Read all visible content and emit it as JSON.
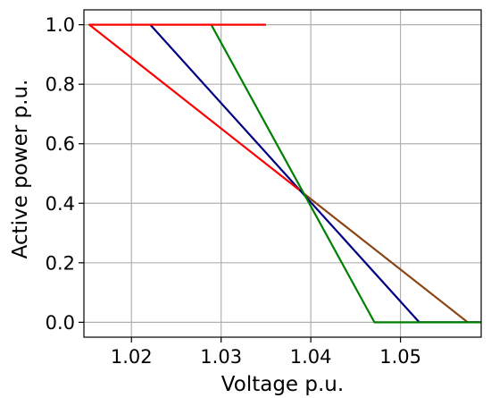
{
  "chart_data": {
    "type": "line",
    "title": "",
    "xlabel": "Voltage p.u.",
    "ylabel": "Active power p.u.",
    "xlim": [
      1.0147,
      1.059
    ],
    "ylim": [
      -0.05,
      1.05
    ],
    "xticks": [
      1.02,
      1.03,
      1.04,
      1.05
    ],
    "xtick_labels": [
      "1.02",
      "1.03",
      "1.04",
      "1.05"
    ],
    "yticks": [
      0.0,
      0.2,
      0.4,
      0.6,
      0.8,
      1.0
    ],
    "ytick_labels": [
      "0.0",
      "0.2",
      "0.4",
      "0.6",
      "0.8",
      "1.0"
    ],
    "grid": true,
    "legend": "none",
    "series": [
      {
        "color": "#8b4513",
        "x": [
          1.0387,
          1.0575,
          1.059
        ],
        "y": [
          0.445,
          0.0,
          0.0
        ]
      },
      {
        "color": "#000080",
        "x": [
          1.0221,
          1.0521,
          1.059
        ],
        "y": [
          1.0,
          0.0,
          0.0
        ]
      },
      {
        "color": "#008000",
        "x": [
          1.0289,
          1.0471,
          1.059
        ],
        "y": [
          1.0,
          0.0,
          0.0
        ]
      },
      {
        "color": "#ff0000",
        "x": [
          1.035,
          1.0153,
          1.0387
        ],
        "y": [
          1.0,
          1.0,
          0.445
        ]
      }
    ],
    "colors": {
      "grid": "#b0b0b0",
      "axis": "#000000",
      "background": "#ffffff"
    }
  }
}
